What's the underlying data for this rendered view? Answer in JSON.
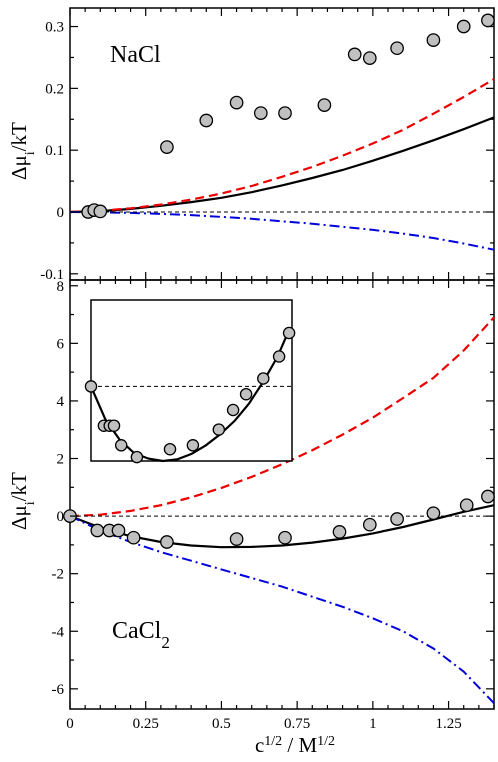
{
  "chart_data": [
    {
      "id": "top",
      "type": "line",
      "panel_label": "NaCl",
      "ylabel": "Δμ",
      "ylabel_sub": "i",
      "ylabel_tail": "/kT",
      "xlim": [
        0,
        1.4
      ],
      "ylim": [
        -0.11,
        0.33
      ],
      "yticks": [
        -0.1,
        0,
        0.1,
        0.2,
        0.3
      ],
      "ytick_labels": [
        "-0.1",
        "0",
        "0.1",
        "0.2",
        "0.3"
      ],
      "series": [
        {
          "style": "solid-black",
          "x": [
            0,
            0.1,
            0.2,
            0.3,
            0.4,
            0.5,
            0.6,
            0.7,
            0.8,
            0.9,
            1.0,
            1.1,
            1.2,
            1.3,
            1.4
          ],
          "y": [
            0,
            0.0015,
            0.005,
            0.01,
            0.016,
            0.023,
            0.032,
            0.043,
            0.055,
            0.068,
            0.083,
            0.099,
            0.116,
            0.134,
            0.153
          ]
        },
        {
          "style": "dashed-red",
          "x": [
            0,
            0.1,
            0.2,
            0.3,
            0.4,
            0.5,
            0.6,
            0.7,
            0.8,
            0.9,
            1.0,
            1.1,
            1.2,
            1.3,
            1.4
          ],
          "y": [
            0,
            0.002,
            0.006,
            0.012,
            0.02,
            0.03,
            0.042,
            0.057,
            0.073,
            0.091,
            0.111,
            0.133,
            0.159,
            0.186,
            0.215
          ]
        },
        {
          "style": "dashdot-blue",
          "x": [
            0,
            0.1,
            0.2,
            0.3,
            0.4,
            0.5,
            0.6,
            0.7,
            0.8,
            0.9,
            1.0,
            1.1,
            1.2,
            1.3,
            1.4
          ],
          "y": [
            0,
            -0.0005,
            -0.0015,
            -0.003,
            -0.005,
            -0.008,
            -0.011,
            -0.015,
            -0.019,
            -0.024,
            -0.029,
            -0.035,
            -0.042,
            -0.051,
            -0.061
          ]
        },
        {
          "style": "zero-dashed",
          "x": [
            0,
            1.4
          ],
          "y": [
            0,
            0
          ]
        }
      ],
      "points": {
        "x": [
          0.06,
          0.08,
          0.1,
          0.32,
          0.45,
          0.55,
          0.63,
          0.71,
          0.84,
          0.94,
          0.99,
          1.08,
          1.2,
          1.3,
          1.38
        ],
        "y": [
          0,
          0.003,
          0.001,
          0.105,
          0.148,
          0.177,
          0.16,
          0.16,
          0.173,
          0.255,
          0.249,
          0.265,
          0.278,
          0.3,
          0.31
        ]
      }
    },
    {
      "id": "bottom",
      "type": "line",
      "panel_label": "CaCl",
      "panel_label_sub": "2",
      "ylabel": "Δμ",
      "ylabel_sub": "i",
      "ylabel_tail": "/kT",
      "xlabel_base1": "c",
      "xlabel_sup1": "1/2",
      "xlabel_mid": " / M",
      "xlabel_sup2": "1/2",
      "xlim": [
        0,
        1.4
      ],
      "ylim": [
        -6.7,
        8.2
      ],
      "xticks": [
        0,
        0.25,
        0.5,
        0.75,
        1,
        1.25
      ],
      "xtick_labels": [
        "0",
        "0.25",
        "0.5",
        "0.75",
        "1",
        "1.25"
      ],
      "yticks": [
        -6,
        -4,
        -2,
        0,
        2,
        4,
        6,
        8
      ],
      "ytick_labels": [
        "-6",
        "-4",
        "-2",
        "0",
        "2",
        "4",
        "6",
        "8"
      ],
      "series": [
        {
          "style": "solid-black",
          "x": [
            0,
            0.1,
            0.2,
            0.3,
            0.4,
            0.5,
            0.6,
            0.7,
            0.8,
            0.9,
            1.0,
            1.1,
            1.2,
            1.3,
            1.4
          ],
          "y": [
            0,
            -0.4,
            -0.7,
            -0.9,
            -1.02,
            -1.08,
            -1.07,
            -1.02,
            -0.92,
            -0.78,
            -0.6,
            -0.38,
            -0.12,
            0.15,
            0.38
          ]
        },
        {
          "style": "dashed-red",
          "x": [
            0,
            0.1,
            0.2,
            0.3,
            0.4,
            0.5,
            0.6,
            0.7,
            0.8,
            0.9,
            1.0,
            1.1,
            1.2,
            1.3,
            1.4
          ],
          "y": [
            0,
            0.05,
            0.18,
            0.38,
            0.65,
            0.98,
            1.36,
            1.8,
            2.29,
            2.83,
            3.42,
            4.1,
            4.8,
            5.75,
            6.9
          ]
        },
        {
          "style": "dashdot-blue",
          "x": [
            0,
            0.1,
            0.2,
            0.3,
            0.4,
            0.5,
            0.6,
            0.7,
            0.8,
            0.9,
            1.0,
            1.1,
            1.2,
            1.3,
            1.4
          ],
          "y": [
            0,
            -0.5,
            -0.9,
            -1.25,
            -1.55,
            -1.85,
            -2.15,
            -2.45,
            -2.8,
            -3.15,
            -3.55,
            -4.0,
            -4.6,
            -5.4,
            -6.5
          ]
        },
        {
          "style": "zero-dashed",
          "x": [
            0,
            1.4
          ],
          "y": [
            0,
            0
          ]
        }
      ],
      "points": {
        "x": [
          0,
          0.09,
          0.13,
          0.16,
          0.21,
          0.32,
          0.55,
          0.71,
          0.89,
          0.99,
          1.08,
          1.2,
          1.31,
          1.38
        ],
        "y": [
          0,
          -0.5,
          -0.5,
          -0.5,
          -0.75,
          -0.9,
          -0.8,
          -0.75,
          -0.55,
          -0.3,
          -0.1,
          0.1,
          0.38,
          0.68
        ]
      }
    },
    {
      "id": "inset",
      "type": "line",
      "xlim": [
        0,
        1.4
      ],
      "ylim": [
        -0.95,
        1.1
      ],
      "series": [
        {
          "style": "solid-black",
          "x": [
            0,
            0.1,
            0.2,
            0.3,
            0.4,
            0.5,
            0.6,
            0.7,
            0.8,
            0.9,
            1.0,
            1.1,
            1.2,
            1.3,
            1.38
          ],
          "y": [
            0,
            -0.42,
            -0.68,
            -0.85,
            -0.92,
            -0.95,
            -0.93,
            -0.86,
            -0.75,
            -0.61,
            -0.44,
            -0.22,
            0.06,
            0.38,
            0.72
          ]
        },
        {
          "style": "zero-dashed",
          "x": [
            0,
            1.4
          ],
          "y": [
            0,
            0
          ]
        }
      ],
      "points": {
        "x": [
          0,
          0.09,
          0.13,
          0.16,
          0.21,
          0.32,
          0.55,
          0.71,
          0.89,
          0.99,
          1.08,
          1.2,
          1.31,
          1.38
        ],
        "y": [
          0,
          -0.5,
          -0.5,
          -0.5,
          -0.75,
          -0.9,
          -0.8,
          -0.75,
          -0.55,
          -0.3,
          -0.1,
          0.1,
          0.38,
          0.68
        ]
      }
    }
  ],
  "colors": {
    "solid-black": "#000000",
    "dashed-red": "#ee0000",
    "dashdot-blue": "#0000dd",
    "zero-dashed": "#000000",
    "marker_fill": "#c0c0c0",
    "marker_stroke": "#000000"
  }
}
